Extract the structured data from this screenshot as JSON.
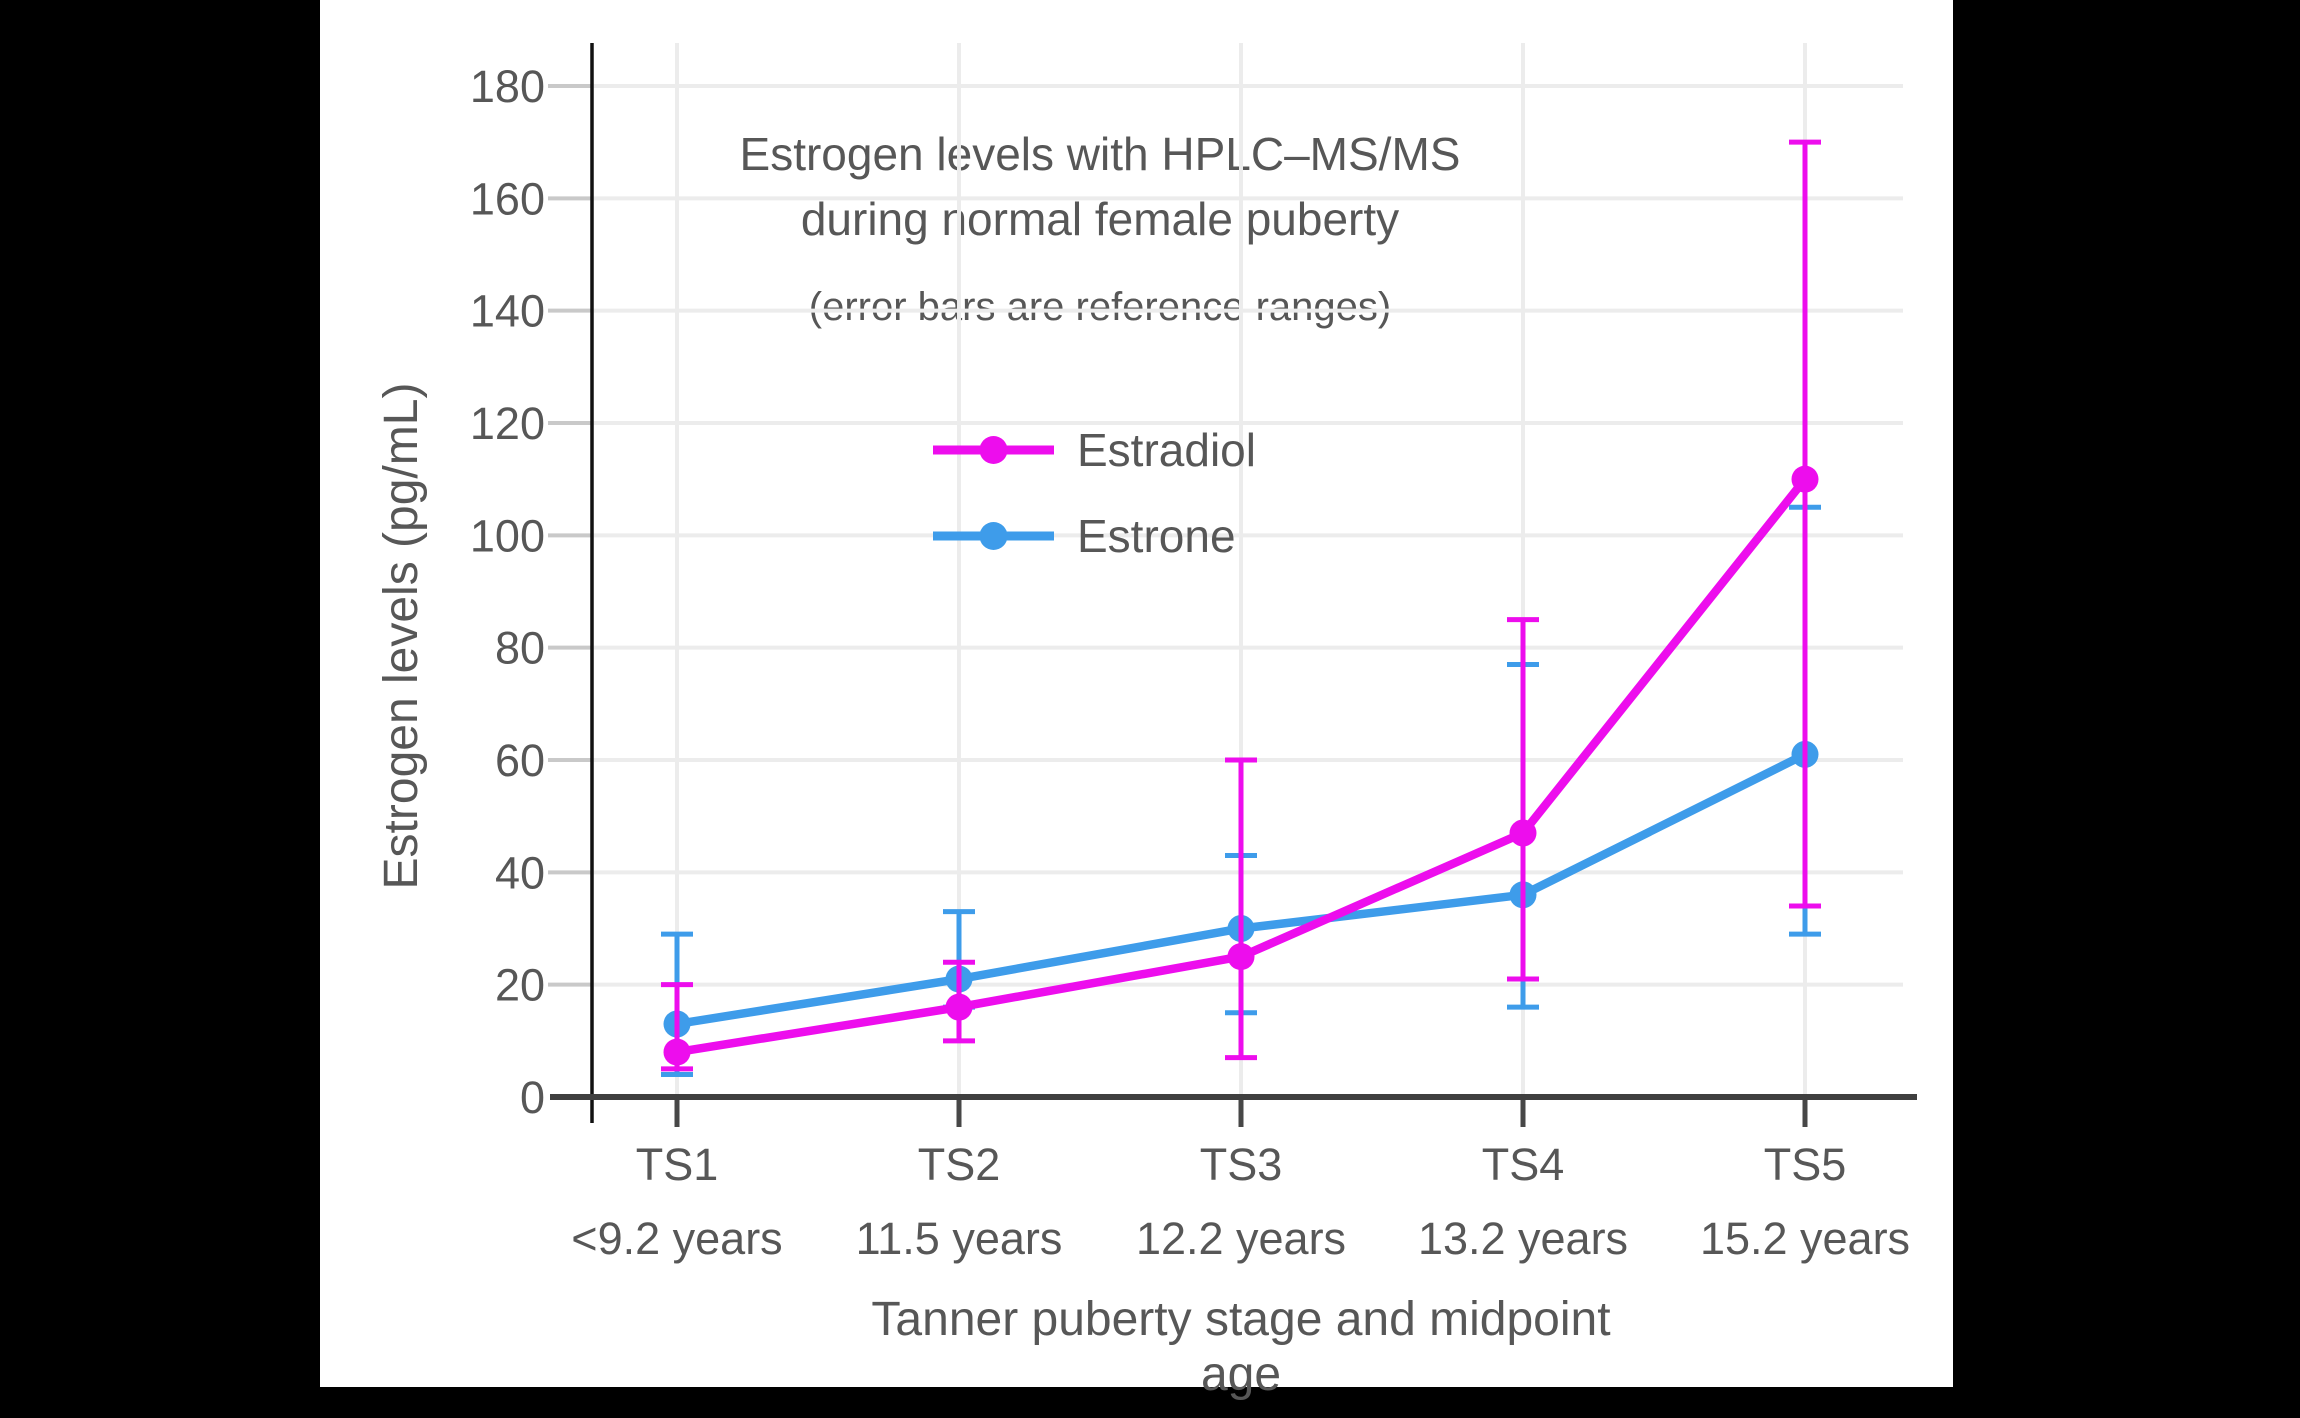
{
  "chart_data": {
    "type": "line",
    "title_line1": "Estrogen levels with HPLC–MS/MS",
    "title_line2": "during normal female puberty",
    "subtitle": "(error bars are reference ranges)",
    "xlabel": "Tanner puberty stage and midpoint age",
    "ylabel": "Estrogen levels (pg/mL)",
    "categories": [
      "TS1",
      "TS2",
      "TS3",
      "TS4",
      "TS5"
    ],
    "category_ages": [
      "<9.2 years",
      "11.5 years",
      "12.2 years",
      "13.2 years",
      "15.2 years"
    ],
    "y_ticks": [
      0,
      20,
      40,
      60,
      80,
      100,
      120,
      140,
      160,
      180
    ],
    "ylim": [
      0,
      187
    ],
    "grid": true,
    "legend_position": "upper-left-inside",
    "error_bars": "reference ranges",
    "series": [
      {
        "name": "Estrone",
        "color": "#3E9CEA",
        "values": [
          13,
          21,
          30,
          36,
          61
        ],
        "range_low": [
          4,
          16,
          15,
          16,
          29
        ],
        "range_high": [
          29,
          33,
          43,
          77,
          105
        ]
      },
      {
        "name": "Estradiol",
        "color": "#ED0DED",
        "values": [
          8,
          16,
          25,
          47,
          110
        ],
        "range_low": [
          5,
          10,
          7,
          21,
          34
        ],
        "range_high": [
          20,
          24,
          60,
          85,
          170
        ]
      }
    ]
  },
  "colors": {
    "background": "#000000",
    "canvas": "#FFFFFF",
    "text": "#575757",
    "axis": "#3F3F3F",
    "spine": "#111111",
    "grid": "#ECECEC",
    "y_tick": "#C9C9C9",
    "x_tick": "#474747"
  }
}
